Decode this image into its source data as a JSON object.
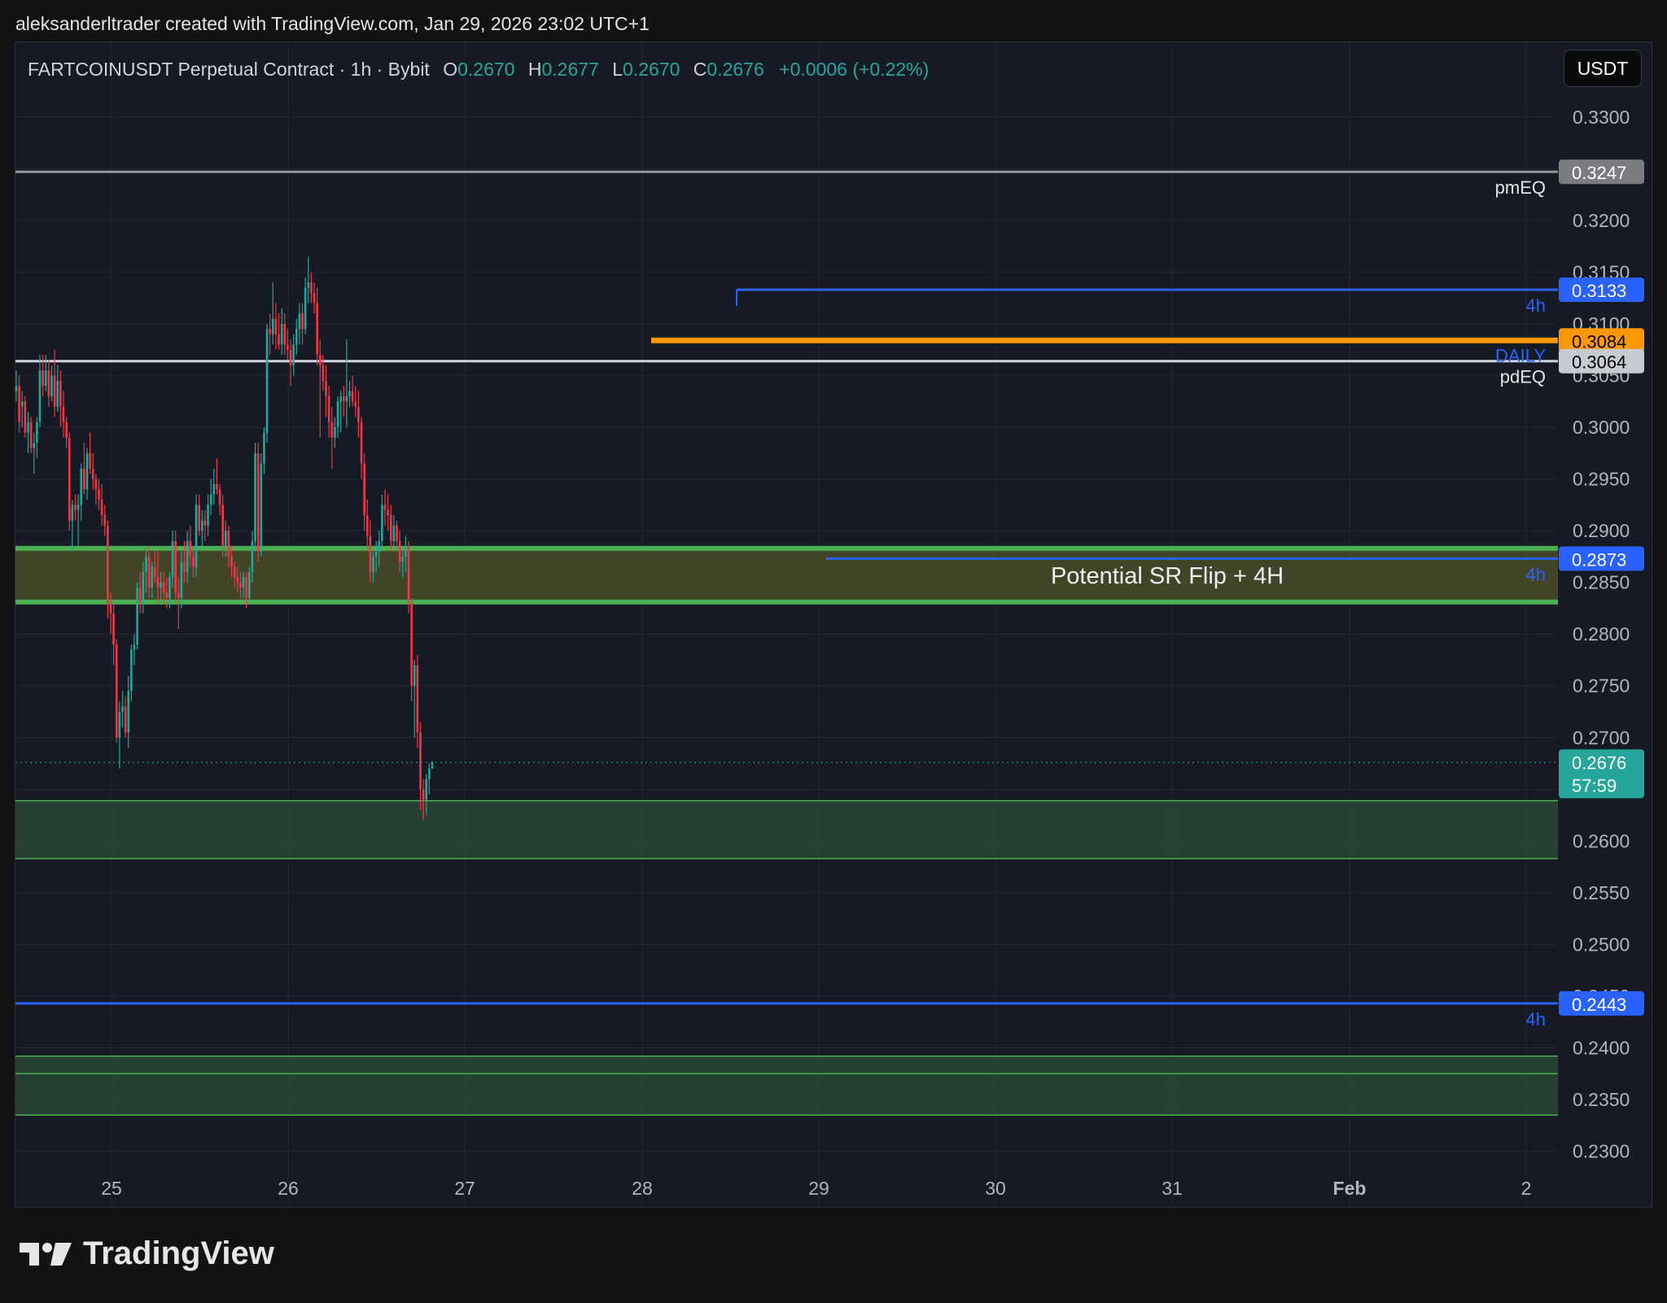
{
  "attribution": "aleksanderltrader created with TradingView.com, Jan 29, 2026 23:02 UTC+1",
  "legend": {
    "symbol": "FARTCOINUSDT Perpetual Contract · 1h · Bybit",
    "o_label": "O",
    "o_value": "0.2670",
    "h_label": "H",
    "h_value": "0.2677",
    "l_label": "L",
    "l_value": "0.2670",
    "c_label": "C",
    "c_value": "0.2676",
    "change": "+0.0006 (+0.22%)"
  },
  "unit_button": "USDT",
  "brand": {
    "name": "TradingView"
  },
  "colors": {
    "background": "#161a25",
    "up": "#26a69a",
    "down": "#f23645",
    "blue_level": "#2962ff",
    "orange_level": "#ff9800",
    "white_level": "#d1d4dc",
    "grey_level": "#9598a1",
    "zone_green": "#4caf50"
  },
  "chart_data": {
    "type": "candlestick",
    "timeframe": "1h",
    "ylim": [
      0.2275,
      0.3347
    ],
    "y_ticks": [
      "0.2300",
      "0.2350",
      "0.2400",
      "0.2450",
      "0.2500",
      "0.2550",
      "0.2600",
      "0.2650",
      "0.2700",
      "0.2750",
      "0.2800",
      "0.2850",
      "0.2900",
      "0.2950",
      "0.3000",
      "0.3050",
      "0.3100",
      "0.3150",
      "0.3200",
      "0.3250",
      "0.3300"
    ],
    "x_ticks": [
      "25",
      "26",
      "27",
      "28",
      "29",
      "30",
      "31",
      "Feb",
      "2"
    ],
    "levels": [
      {
        "label": "pmEQ",
        "price": "0.3247",
        "style": "grey"
      },
      {
        "label": "4h",
        "price": "0.3133",
        "style": "blue"
      },
      {
        "label": "DAILY",
        "price": "0.3084",
        "style": "orange"
      },
      {
        "label": "pdEQ",
        "price": "0.3064",
        "style": "white"
      },
      {
        "label": "4h",
        "price": "0.2873",
        "style": "blue"
      },
      {
        "label": "4h",
        "price": "0.2443",
        "style": "blue"
      }
    ],
    "zones": [
      {
        "top": 0.2883,
        "bottom": 0.2831,
        "label": "Potential SR Flip + 4H"
      },
      {
        "top": 0.2639,
        "bottom": 0.2583,
        "label": ""
      },
      {
        "top": 0.2392,
        "bottom": 0.2335,
        "label": ""
      }
    ],
    "last_price": {
      "price": "0.2676",
      "countdown": "57:59"
    },
    "candles": [
      [
        0.3035,
        0.3055,
        0.3025,
        0.304
      ],
      [
        0.304,
        0.305,
        0.2995,
        0.3005
      ],
      [
        0.302,
        0.3035,
        0.3,
        0.3025
      ],
      [
        0.3025,
        0.303,
        0.299,
        0.2995
      ],
      [
        0.2995,
        0.3015,
        0.2975,
        0.3005
      ],
      [
        0.3005,
        0.301,
        0.2975,
        0.298
      ],
      [
        0.298,
        0.2995,
        0.2955,
        0.2985
      ],
      [
        0.2985,
        0.301,
        0.297,
        0.3005
      ],
      [
        0.3005,
        0.307,
        0.3,
        0.3055
      ],
      [
        0.3055,
        0.307,
        0.303,
        0.304
      ],
      [
        0.304,
        0.307,
        0.3035,
        0.3055
      ],
      [
        0.3055,
        0.3065,
        0.302,
        0.303
      ],
      [
        0.303,
        0.306,
        0.3025,
        0.305
      ],
      [
        0.305,
        0.3075,
        0.301,
        0.302
      ],
      [
        0.302,
        0.306,
        0.3015,
        0.3045
      ],
      [
        0.3045,
        0.3055,
        0.3,
        0.302
      ],
      [
        0.302,
        0.3035,
        0.299,
        0.3005
      ],
      [
        0.3005,
        0.301,
        0.298,
        0.299
      ],
      [
        0.299,
        0.2995,
        0.29,
        0.291
      ],
      [
        0.291,
        0.293,
        0.288,
        0.2925
      ],
      [
        0.2925,
        0.2935,
        0.291,
        0.292
      ],
      [
        0.292,
        0.2935,
        0.2885,
        0.2925
      ],
      [
        0.2925,
        0.2965,
        0.291,
        0.296
      ],
      [
        0.296,
        0.2985,
        0.2935,
        0.294
      ],
      [
        0.294,
        0.298,
        0.293,
        0.2975
      ],
      [
        0.2975,
        0.2995,
        0.2955,
        0.296
      ],
      [
        0.296,
        0.2975,
        0.294,
        0.295
      ],
      [
        0.295,
        0.2955,
        0.2925,
        0.294
      ],
      [
        0.294,
        0.295,
        0.292,
        0.293
      ],
      [
        0.293,
        0.2945,
        0.2905,
        0.2915
      ],
      [
        0.2915,
        0.2925,
        0.2895,
        0.2905
      ],
      [
        0.2905,
        0.291,
        0.2815,
        0.283
      ],
      [
        0.283,
        0.284,
        0.28,
        0.282
      ],
      [
        0.282,
        0.283,
        0.277,
        0.279
      ],
      [
        0.279,
        0.2795,
        0.2695,
        0.27
      ],
      [
        0.27,
        0.2735,
        0.267,
        0.2725
      ],
      [
        0.2725,
        0.2745,
        0.271,
        0.273
      ],
      [
        0.273,
        0.274,
        0.27,
        0.2705
      ],
      [
        0.2705,
        0.276,
        0.269,
        0.2745
      ],
      [
        0.2745,
        0.279,
        0.2735,
        0.2785
      ],
      [
        0.2785,
        0.28,
        0.277,
        0.279
      ],
      [
        0.279,
        0.285,
        0.2785,
        0.2845
      ],
      [
        0.2845,
        0.286,
        0.282,
        0.283
      ],
      [
        0.283,
        0.287,
        0.282,
        0.286
      ],
      [
        0.286,
        0.2885,
        0.284,
        0.2875
      ],
      [
        0.2875,
        0.2885,
        0.2835,
        0.2845
      ],
      [
        0.2845,
        0.287,
        0.2835,
        0.2865
      ],
      [
        0.2865,
        0.288,
        0.285,
        0.2855
      ],
      [
        0.2855,
        0.288,
        0.283,
        0.2845
      ],
      [
        0.2845,
        0.286,
        0.283,
        0.285
      ],
      [
        0.285,
        0.286,
        0.283,
        0.284
      ],
      [
        0.284,
        0.2855,
        0.2825,
        0.2835
      ],
      [
        0.2835,
        0.286,
        0.2825,
        0.2855
      ],
      [
        0.2855,
        0.29,
        0.2845,
        0.289
      ],
      [
        0.289,
        0.29,
        0.283,
        0.284
      ],
      [
        0.284,
        0.2855,
        0.2805,
        0.2835
      ],
      [
        0.2835,
        0.288,
        0.2825,
        0.287
      ],
      [
        0.287,
        0.289,
        0.285,
        0.286
      ],
      [
        0.286,
        0.29,
        0.285,
        0.289
      ],
      [
        0.289,
        0.2905,
        0.2865,
        0.2875
      ],
      [
        0.2875,
        0.2885,
        0.2855,
        0.2865
      ],
      [
        0.2865,
        0.2935,
        0.2855,
        0.2925
      ],
      [
        0.2925,
        0.2935,
        0.2895,
        0.29
      ],
      [
        0.29,
        0.292,
        0.2885,
        0.291
      ],
      [
        0.291,
        0.292,
        0.289,
        0.2905
      ],
      [
        0.2905,
        0.2935,
        0.2895,
        0.2925
      ],
      [
        0.2925,
        0.295,
        0.2915,
        0.2935
      ],
      [
        0.2935,
        0.296,
        0.2925,
        0.2945
      ],
      [
        0.2945,
        0.297,
        0.2935,
        0.294
      ],
      [
        0.294,
        0.2945,
        0.2915,
        0.2925
      ],
      [
        0.2925,
        0.2935,
        0.2875,
        0.2885
      ],
      [
        0.2885,
        0.291,
        0.2875,
        0.29
      ],
      [
        0.29,
        0.2905,
        0.2865,
        0.2875
      ],
      [
        0.2875,
        0.2885,
        0.2855,
        0.2865
      ],
      [
        0.2865,
        0.287,
        0.2845,
        0.2855
      ],
      [
        0.2855,
        0.2865,
        0.284,
        0.285
      ],
      [
        0.285,
        0.286,
        0.2835,
        0.2845
      ],
      [
        0.2845,
        0.286,
        0.2835,
        0.2855
      ],
      [
        0.2855,
        0.286,
        0.2825,
        0.2835
      ],
      [
        0.2835,
        0.2865,
        0.283,
        0.286
      ],
      [
        0.286,
        0.29,
        0.285,
        0.289
      ],
      [
        0.289,
        0.2985,
        0.288,
        0.2975
      ],
      [
        0.2975,
        0.2985,
        0.287,
        0.288
      ],
      [
        0.288,
        0.2975,
        0.2875,
        0.2965
      ],
      [
        0.2965,
        0.3,
        0.2955,
        0.2995
      ],
      [
        0.2995,
        0.31,
        0.2985,
        0.3095
      ],
      [
        0.3095,
        0.311,
        0.307,
        0.309
      ],
      [
        0.309,
        0.314,
        0.308,
        0.3105
      ],
      [
        0.3105,
        0.312,
        0.3075,
        0.309
      ],
      [
        0.309,
        0.311,
        0.3075,
        0.308
      ],
      [
        0.308,
        0.3115,
        0.307,
        0.31
      ],
      [
        0.31,
        0.311,
        0.307,
        0.308
      ],
      [
        0.308,
        0.3095,
        0.3065,
        0.3075
      ],
      [
        0.3075,
        0.3085,
        0.304,
        0.306
      ],
      [
        0.306,
        0.309,
        0.305,
        0.308
      ],
      [
        0.308,
        0.3105,
        0.307,
        0.3095
      ],
      [
        0.3095,
        0.312,
        0.308,
        0.311
      ],
      [
        0.311,
        0.312,
        0.308,
        0.3095
      ],
      [
        0.3095,
        0.3145,
        0.309,
        0.3135
      ],
      [
        0.3135,
        0.3165,
        0.312,
        0.314
      ],
      [
        0.314,
        0.315,
        0.312,
        0.313
      ],
      [
        0.313,
        0.314,
        0.311,
        0.312
      ],
      [
        0.312,
        0.3135,
        0.306,
        0.307
      ],
      [
        0.307,
        0.3085,
        0.299,
        0.306
      ],
      [
        0.306,
        0.307,
        0.3035,
        0.3045
      ],
      [
        0.3045,
        0.306,
        0.301,
        0.303
      ],
      [
        0.303,
        0.304,
        0.299,
        0.3005
      ],
      [
        0.3005,
        0.302,
        0.296,
        0.299
      ],
      [
        0.299,
        0.301,
        0.298,
        0.3
      ],
      [
        0.3,
        0.303,
        0.299,
        0.3025
      ],
      [
        0.3025,
        0.3035,
        0.2995,
        0.303
      ],
      [
        0.303,
        0.304,
        0.301,
        0.3025
      ],
      [
        0.3025,
        0.3085,
        0.3,
        0.303
      ],
      [
        0.303,
        0.3045,
        0.302,
        0.3035
      ],
      [
        0.3035,
        0.305,
        0.302,
        0.3025
      ],
      [
        0.3025,
        0.304,
        0.301,
        0.302
      ],
      [
        0.302,
        0.3035,
        0.299,
        0.3005
      ],
      [
        0.3005,
        0.301,
        0.295,
        0.2965
      ],
      [
        0.2965,
        0.2975,
        0.29,
        0.2915
      ],
      [
        0.2915,
        0.293,
        0.288,
        0.2895
      ],
      [
        0.2895,
        0.291,
        0.285,
        0.286
      ],
      [
        0.286,
        0.288,
        0.285,
        0.2875
      ],
      [
        0.2875,
        0.289,
        0.286,
        0.288
      ],
      [
        0.288,
        0.29,
        0.2865,
        0.289
      ],
      [
        0.289,
        0.2935,
        0.288,
        0.2925
      ],
      [
        0.2925,
        0.294,
        0.2905,
        0.292
      ],
      [
        0.292,
        0.2935,
        0.29,
        0.2915
      ],
      [
        0.2915,
        0.2925,
        0.288,
        0.289
      ],
      [
        0.289,
        0.2915,
        0.288,
        0.2905
      ],
      [
        0.2905,
        0.291,
        0.288,
        0.289
      ],
      [
        0.289,
        0.29,
        0.286,
        0.287
      ],
      [
        0.287,
        0.288,
        0.2855,
        0.2875
      ],
      [
        0.2875,
        0.2895,
        0.286,
        0.2885
      ],
      [
        0.2885,
        0.289,
        0.282,
        0.283
      ],
      [
        0.283,
        0.2835,
        0.2735,
        0.275
      ],
      [
        0.275,
        0.2775,
        0.27,
        0.277
      ],
      [
        0.277,
        0.278,
        0.269,
        0.2705
      ],
      [
        0.2705,
        0.2715,
        0.263,
        0.265
      ],
      [
        0.265,
        0.266,
        0.262,
        0.264
      ],
      [
        0.264,
        0.2665,
        0.2625,
        0.266
      ],
      [
        0.266,
        0.2675,
        0.2645,
        0.267
      ],
      [
        0.267,
        0.2677,
        0.267,
        0.2676
      ]
    ]
  }
}
